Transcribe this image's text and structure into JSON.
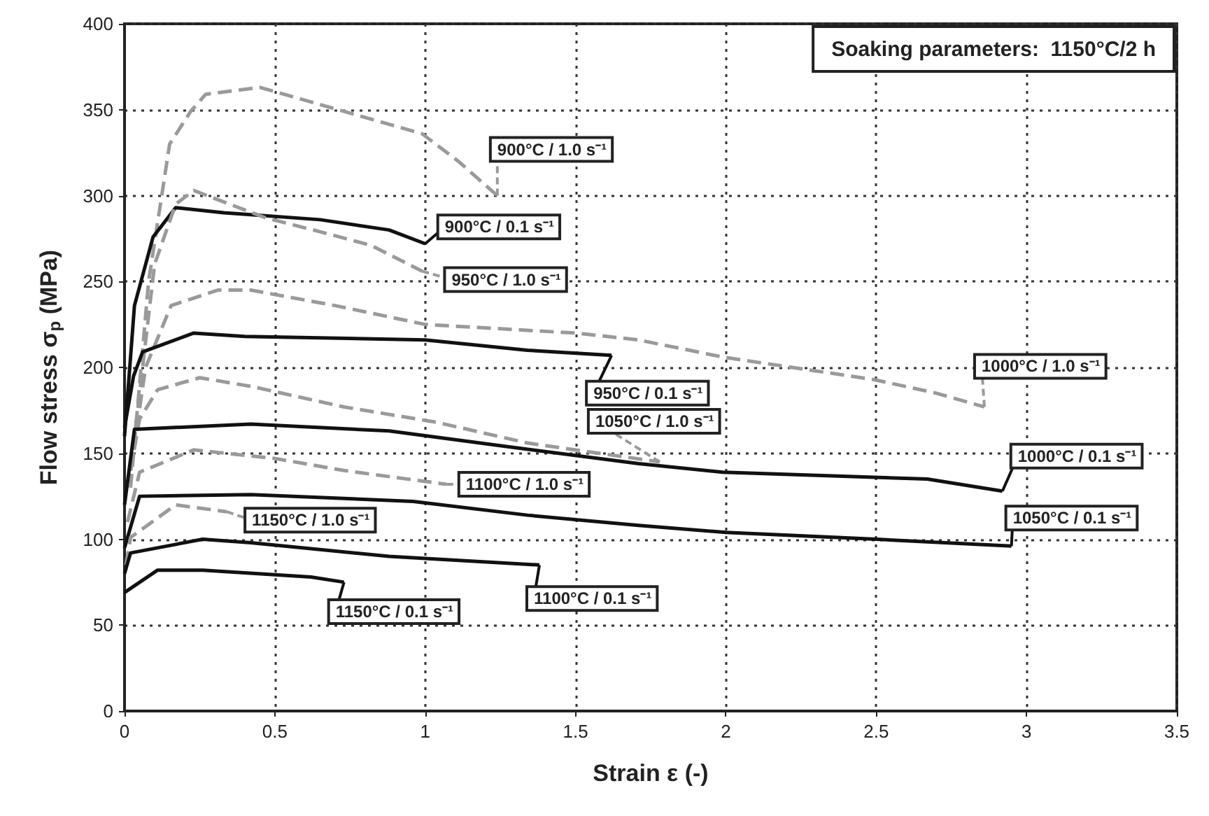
{
  "chart_data": {
    "type": "line",
    "xlabel": "Strain ε (-)",
    "ylabel": "Flow stress σ$_{p}$ (MPa)",
    "xlim": [
      0,
      3.5
    ],
    "xticks": [
      0,
      0.5,
      1,
      1.5,
      2,
      2.5,
      3,
      3.5
    ],
    "ylim": [
      0,
      400
    ],
    "yticks": [
      0,
      50,
      100,
      150,
      200,
      250,
      300,
      350,
      400
    ],
    "grid": true,
    "marker": "none",
    "legend": "bottom left",
    "annotations": [
      "Soaking parameters:  1150°C/2 h"
    ],
    "series": [
      {
        "name": "900°C / 1.0 s⁻¹",
        "color": "#9a9a9a",
        "line_style": "dashed",
        "x": [
          0.02,
          0.08,
          0.15,
          0.22,
          0.27,
          0.45,
          0.73,
          0.99,
          1.11,
          1.24
        ],
        "values": [
          130,
          250,
          330,
          349,
          359,
          363,
          349,
          336,
          320,
          300
        ]
      },
      {
        "name": "900°C / 0.1 s⁻¹",
        "color": "#111111",
        "line_style": "solid",
        "x": [
          0,
          0.033,
          0.095,
          0.17,
          0.33,
          0.65,
          0.88,
          1.0
        ],
        "values": [
          160,
          236,
          276,
          293,
          290,
          286,
          280,
          272
        ]
      },
      {
        "name": "950°C / 1.0 s⁻¹",
        "color": "#9a9a9a",
        "line_style": "dashed",
        "x": [
          0.02,
          0.1,
          0.17,
          0.23,
          0.47,
          0.65,
          0.82,
          0.99
        ],
        "values": [
          140,
          260,
          295,
          303,
          287,
          279,
          271,
          256
        ]
      },
      {
        "name": "1000°C / 1.0 s⁻¹",
        "color": "#9a9a9a",
        "line_style": "dashed",
        "x": [
          0.02,
          0.07,
          0.155,
          0.31,
          0.42,
          0.7,
          1.0,
          1.5,
          1.71,
          1.99,
          2.49,
          2.7,
          2.86
        ],
        "values": [
          140,
          200,
          236,
          245,
          245,
          236,
          225,
          220,
          216,
          206,
          193,
          185,
          177
        ]
      },
      {
        "name": "950°C / 0.1 s⁻¹",
        "color": "#111111",
        "line_style": "solid",
        "x": [
          0,
          0.03,
          0.06,
          0.23,
          0.4,
          1.0,
          1.34,
          1.62
        ],
        "values": [
          165,
          195,
          209,
          220,
          218,
          216,
          210,
          207
        ]
      },
      {
        "name": "1050°C / 1.0 s⁻¹",
        "color": "#9a9a9a",
        "line_style": "dashed",
        "x": [
          0.02,
          0.05,
          0.11,
          0.25,
          0.42,
          0.73,
          1.04,
          1.34,
          1.58,
          1.78
        ],
        "values": [
          140,
          170,
          187,
          194,
          189,
          177,
          168,
          156,
          150,
          145
        ]
      },
      {
        "name": "1000°C / 0.1 s⁻¹",
        "color": "#111111",
        "line_style": "solid",
        "x": [
          0,
          0.033,
          0.42,
          0.88,
          1.27,
          1.71,
          1.99,
          2.67,
          2.92
        ],
        "values": [
          120,
          164,
          167,
          163,
          154,
          144,
          139,
          135,
          128
        ]
      },
      {
        "name": "1100°C / 1.0 s⁻¹",
        "color": "#9a9a9a",
        "line_style": "dashed",
        "x": [
          0.01,
          0.05,
          0.23,
          0.5,
          0.73,
          1.07
        ],
        "values": [
          110,
          139,
          152,
          147,
          140,
          132
        ]
      },
      {
        "name": "1050°C / 0.1 s⁻¹",
        "color": "#111111",
        "line_style": "solid",
        "x": [
          0,
          0.05,
          0.42,
          0.96,
          1.34,
          1.71,
          2.0,
          2.5,
          2.95
        ],
        "values": [
          95,
          125,
          126,
          122,
          114,
          108,
          104,
          100,
          96
        ]
      },
      {
        "name": "1150°C / 1.0 s⁻¹",
        "color": "#9a9a9a",
        "line_style": "dashed",
        "x": [
          0.005,
          0.02,
          0.17,
          0.34
        ],
        "values": [
          85,
          101,
          120,
          116
        ]
      },
      {
        "name": "1100°C / 0.1 s⁻¹",
        "color": "#111111",
        "line_style": "solid",
        "x": [
          0,
          0.02,
          0.26,
          0.42,
          0.88,
          1.38
        ],
        "values": [
          80,
          92,
          100,
          98,
          90,
          85
        ]
      },
      {
        "name": "1150°C / 0.1 s⁻¹",
        "color": "#111111",
        "line_style": "solid",
        "x": [
          0,
          0.11,
          0.26,
          0.62,
          0.73
        ],
        "values": [
          69,
          82,
          82,
          78,
          75
        ]
      }
    ]
  }
}
